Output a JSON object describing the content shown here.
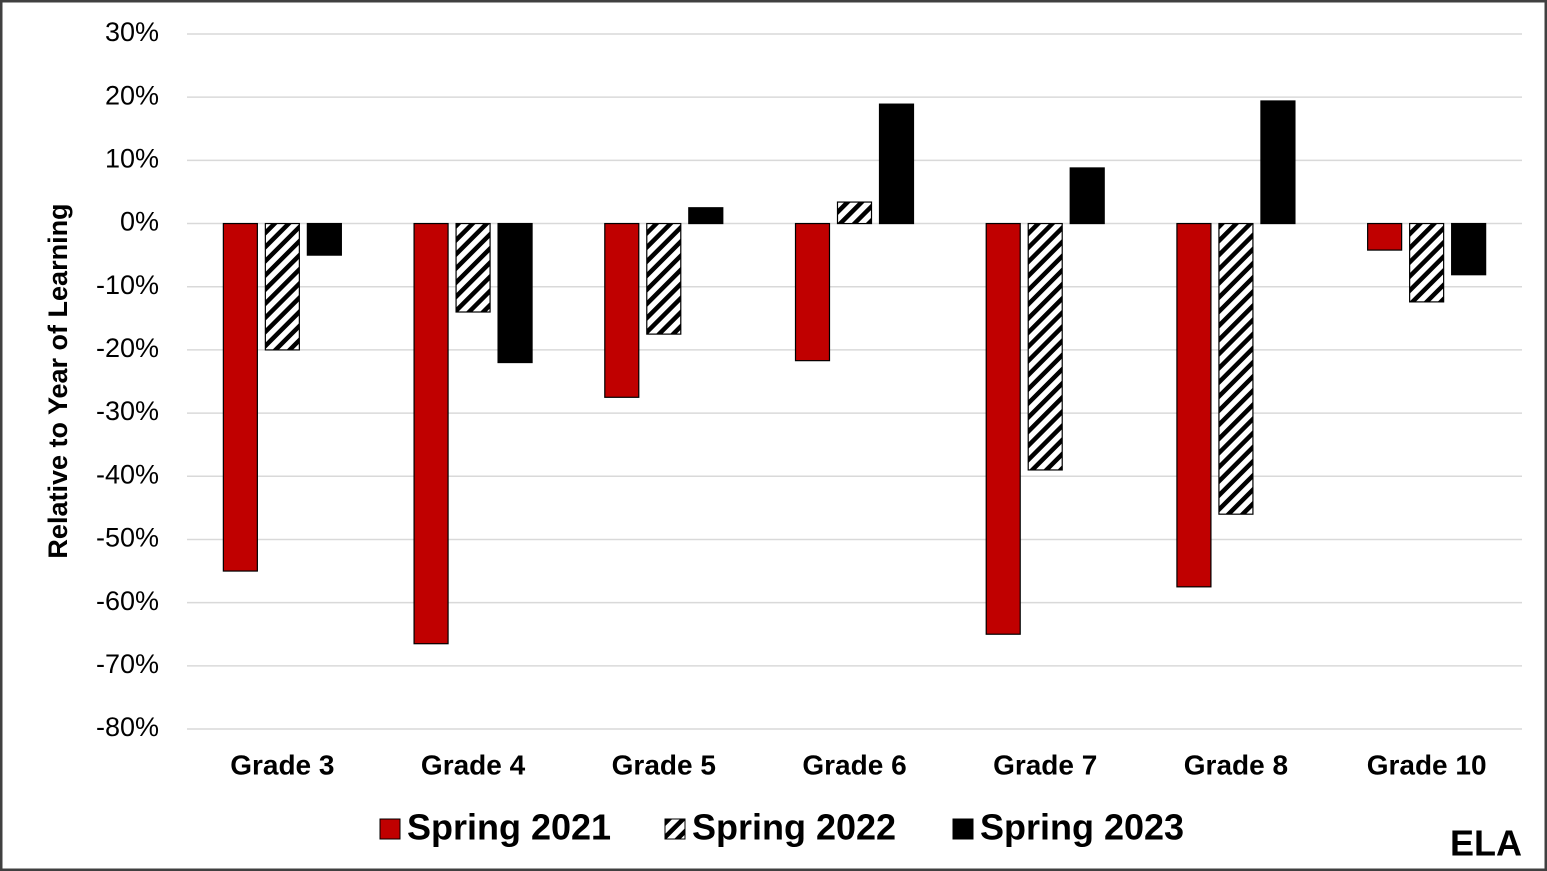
{
  "chart_data": {
    "type": "bar",
    "ylabel": "Relative to Year of Learning",
    "annotation": "ELA",
    "categories": [
      "Grade 3",
      "Grade 4",
      "Grade 5",
      "Grade 6",
      "Grade 7",
      "Grade 8",
      "Grade 10"
    ],
    "series": [
      {
        "name": "Spring 2021",
        "color": "#c00000",
        "values": [
          -55,
          -66.5,
          -27.5,
          -21.7,
          -65,
          -57.5,
          -4.2
        ]
      },
      {
        "name": "Spring 2022",
        "color": "#ffffff",
        "hatch": true,
        "values": [
          -20,
          -14,
          -17.5,
          3.4,
          -39,
          -46,
          -12.4
        ]
      },
      {
        "name": "Spring 2023",
        "color": "#000000",
        "values": [
          -5,
          -22,
          2.5,
          18.9,
          8.8,
          19.4,
          -8.1
        ]
      }
    ],
    "ylim": [
      -80,
      30
    ],
    "yticks": [
      {
        "value": -80,
        "label": "-80%"
      },
      {
        "value": -70,
        "label": "-70%"
      },
      {
        "value": -60,
        "label": "-60%"
      },
      {
        "value": -50,
        "label": "-50%"
      },
      {
        "value": -40,
        "label": "-40%"
      },
      {
        "value": -30,
        "label": "-30%"
      },
      {
        "value": -20,
        "label": "-20%"
      },
      {
        "value": -10,
        "label": "-10%"
      },
      {
        "value": 0,
        "label": "0%"
      },
      {
        "value": 10,
        "label": "10%"
      },
      {
        "value": 20,
        "label": "20%"
      },
      {
        "value": 30,
        "label": "30%"
      }
    ],
    "grid": true,
    "legend": "bottom"
  }
}
